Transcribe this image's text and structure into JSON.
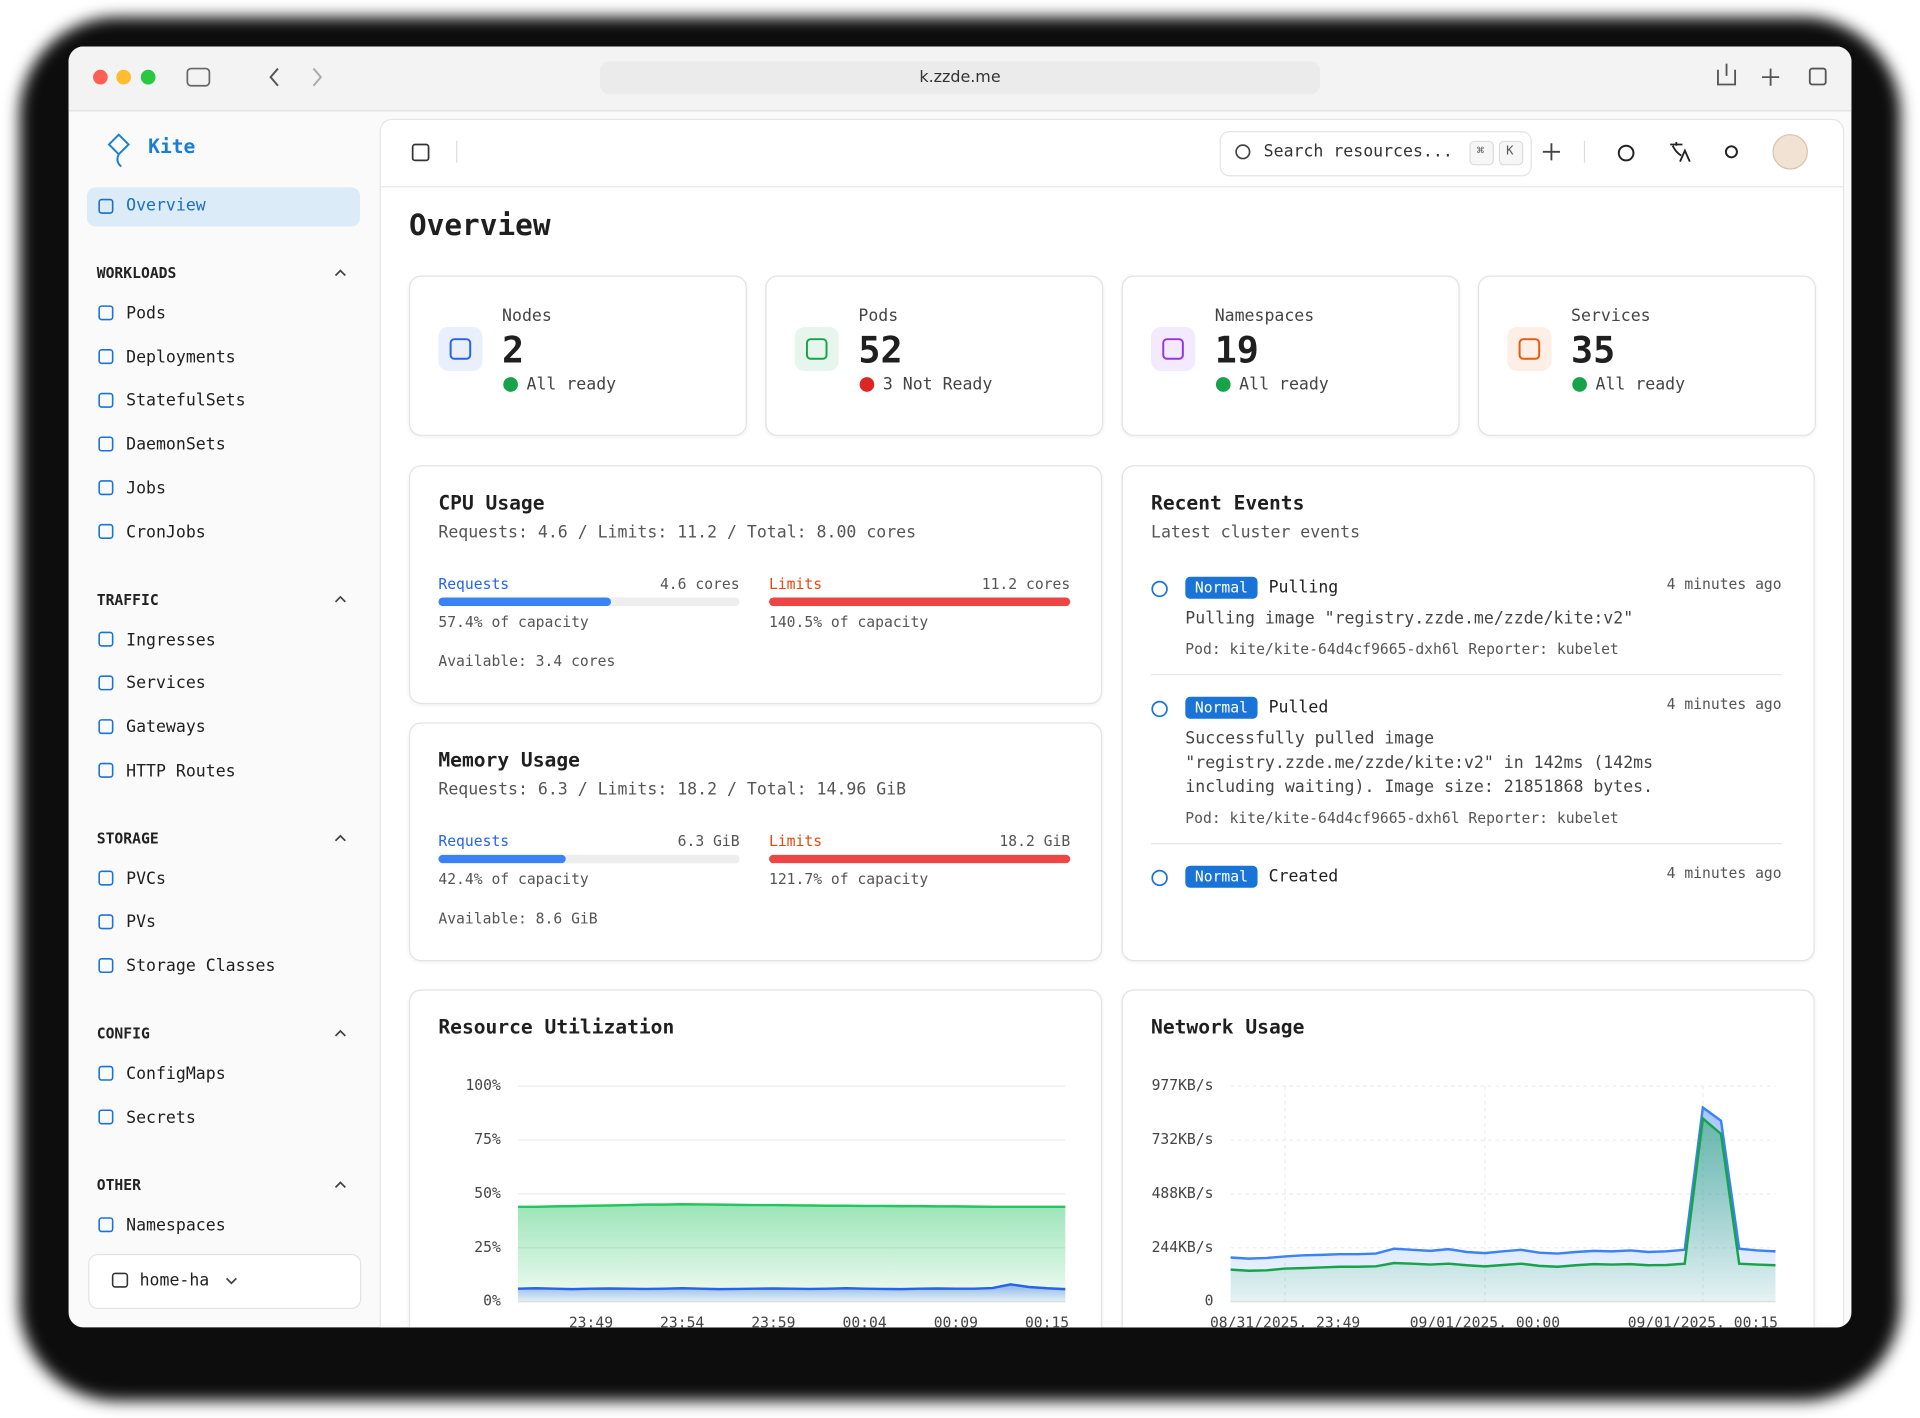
{
  "browser": {
    "url": "k.zzde.me"
  },
  "sidebar": {
    "brand": "Kite",
    "active": "Overview",
    "sections": [
      {
        "title": "WORKLOADS",
        "items": [
          "Pods",
          "Deployments",
          "StatefulSets",
          "DaemonSets",
          "Jobs",
          "CronJobs"
        ]
      },
      {
        "title": "TRAFFIC",
        "items": [
          "Ingresses",
          "Services",
          "Gateways",
          "HTTP Routes"
        ]
      },
      {
        "title": "STORAGE",
        "items": [
          "PVCs",
          "PVs",
          "Storage Classes"
        ]
      },
      {
        "title": "CONFIG",
        "items": [
          "ConfigMaps",
          "Secrets"
        ]
      },
      {
        "title": "OTHER",
        "items": [
          "Namespaces"
        ]
      }
    ],
    "cluster": "home-ha"
  },
  "header": {
    "search": "Search resources...",
    "shortcut": [
      "⌘",
      "K"
    ]
  },
  "page_title": "Overview",
  "stats": [
    {
      "label": "Nodes",
      "value": 2,
      "status": "All ready",
      "color": "#2563eb",
      "status_color": "#16a34a"
    },
    {
      "label": "Pods",
      "value": 52,
      "status": "3 Not Ready",
      "color": "#16a34a",
      "status_color": "#dc2626"
    },
    {
      "label": "Namespaces",
      "value": 19,
      "status": "All ready",
      "color": "#9333ea",
      "status_color": "#16a34a"
    },
    {
      "label": "Services",
      "value": 35,
      "status": "All ready",
      "color": "#ea580c",
      "status_color": "#16a34a"
    }
  ],
  "usage": [
    {
      "title": "CPU Usage",
      "subtitle": "Requests: 4.6 / Limits: 11.2 / Total: 8.00 cores",
      "requests": {
        "label": "Requests",
        "amount": "4.6 cores",
        "percent": 57.4,
        "percent_label": "57.4% of capacity",
        "color": "#3b82f6",
        "label_color": "#2563eb"
      },
      "limits": {
        "label": "Limits",
        "amount": "11.2 cores",
        "percent": 140.5,
        "percent_label": "140.5% of capacity",
        "color": "#ef4444",
        "label_color": "#e5480c"
      },
      "available": "Available: 3.4 cores"
    },
    {
      "title": "Memory Usage",
      "subtitle": "Requests: 6.3 / Limits: 18.2 / Total: 14.96 GiB",
      "requests": {
        "label": "Requests",
        "amount": "6.3 GiB",
        "percent": 42.4,
        "percent_label": "42.4% of capacity",
        "color": "#3b82f6",
        "label_color": "#2563eb"
      },
      "limits": {
        "label": "Limits",
        "amount": "18.2 GiB",
        "percent": 121.7,
        "percent_label": "121.7% of capacity",
        "color": "#ef4444",
        "label_color": "#e5480c"
      },
      "available": "Available: 8.6 GiB"
    }
  ],
  "events": {
    "title": "Recent Events",
    "subtitle": "Latest cluster events",
    "items": [
      {
        "type": "Normal",
        "reason": "Pulling",
        "time": "4 minutes ago",
        "message": "Pulling image \"registry.zzde.me/zzde/kite:v2\"",
        "meta": "Pod: kite/kite-64d4cf9665-dxh6l Reporter: kubelet"
      },
      {
        "type": "Normal",
        "reason": "Pulled",
        "time": "4 minutes ago",
        "message": "Successfully pulled image \"registry.zzde.me/zzde/kite:v2\" in 142ms (142ms including waiting). Image size: 21851868 bytes.",
        "meta": "Pod: kite/kite-64d4cf9665-dxh6l Reporter: kubelet"
      },
      {
        "type": "Normal",
        "reason": "Created",
        "time": "4 minutes ago"
      }
    ]
  },
  "chart_data": [
    {
      "type": "area",
      "title": "Resource Utilization",
      "categories": [
        null,
        null,
        null,
        null,
        "23:49",
        null,
        null,
        null,
        null,
        "23:54",
        null,
        null,
        null,
        null,
        "23:59",
        null,
        null,
        null,
        null,
        "00:04",
        null,
        null,
        null,
        null,
        "00:09",
        null,
        null,
        null,
        null,
        "00:15",
        null
      ],
      "series": [
        {
          "color": "#22c55e",
          "values": [
            44,
            44,
            44.2,
            44.3,
            44.5,
            44.6,
            44.8,
            45,
            45,
            45.2,
            45.1,
            45,
            44.9,
            44.8,
            44.8,
            44.7,
            44.6,
            44.5,
            44.5,
            44.4,
            44.4,
            44.3,
            44.3,
            44.2,
            44.2,
            44.1,
            44,
            44,
            44,
            44,
            44
          ]
        },
        {
          "color": "#2563eb",
          "values": [
            6,
            6.2,
            6,
            5.8,
            6,
            6.1,
            6,
            5.9,
            6,
            6.2,
            6,
            5.8,
            5.9,
            6,
            6.1,
            6,
            5.9,
            6,
            6.2,
            6,
            5.9,
            5.8,
            6,
            6.1,
            6,
            6,
            6.3,
            8,
            6.8,
            6.2,
            5.8
          ]
        }
      ],
      "ylim": [
        0,
        100
      ],
      "yticks": [
        {
          "value": 0,
          "label": "0%"
        },
        {
          "value": 25,
          "label": "25%"
        },
        {
          "value": 50,
          "label": "50%"
        },
        {
          "value": 75,
          "label": "75%"
        },
        {
          "value": 100,
          "label": "100%"
        }
      ],
      "grid": true,
      "grid_dash": false
    },
    {
      "type": "area",
      "title": "Network Usage",
      "categories": [
        null,
        null,
        null,
        "08/31/2025, 23:49",
        null,
        null,
        null,
        null,
        null,
        null,
        null,
        null,
        null,
        null,
        "09/01/2025, 00:00",
        null,
        null,
        null,
        null,
        null,
        null,
        null,
        null,
        null,
        null,
        null,
        "09/01/2025, 00:15",
        null,
        null,
        null,
        null
      ],
      "series": [
        {
          "color": "#3b82f6",
          "values": [
            200,
            195,
            198,
            205,
            210,
            212,
            215,
            215,
            218,
            240,
            235,
            230,
            238,
            225,
            220,
            228,
            235,
            222,
            218,
            225,
            230,
            228,
            232,
            225,
            228,
            235,
            880,
            820,
            240,
            232,
            228
          ]
        },
        {
          "color": "#16a34a",
          "values": [
            145,
            140,
            142,
            150,
            152,
            155,
            158,
            158,
            160,
            175,
            172,
            168,
            172,
            165,
            160,
            166,
            172,
            162,
            158,
            165,
            170,
            168,
            170,
            165,
            166,
            172,
            830,
            760,
            172,
            168,
            165
          ]
        }
      ],
      "ylim": [
        0,
        977
      ],
      "yticks": [
        0,
        {
          "value": 244,
          "label": "244KB/s"
        },
        {
          "value": 488,
          "label": "488KB/s"
        },
        {
          "value": 732,
          "label": "732KB/s"
        },
        {
          "value": 977,
          "label": "977KB/s"
        }
      ],
      "grid": true,
      "grid_dash": true
    }
  ]
}
